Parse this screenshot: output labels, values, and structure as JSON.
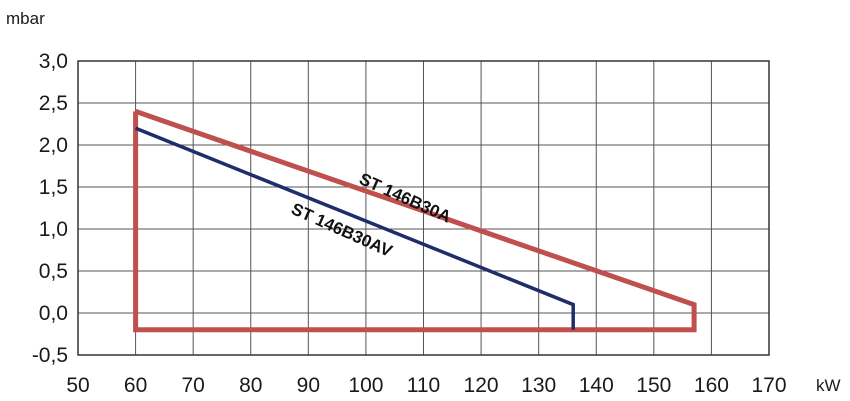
{
  "chart_data": {
    "type": "line",
    "ylabel": "mbar",
    "xlabel": "kW",
    "xlim": [
      50,
      170
    ],
    "ylim": [
      -0.5,
      3.0
    ],
    "x_ticks": [
      "50",
      "60",
      "70",
      "80",
      "90",
      "100",
      "110",
      "120",
      "130",
      "140",
      "150",
      "160",
      "170"
    ],
    "y_ticks": [
      "3,0",
      "2,5",
      "2,0",
      "1,5",
      "1,0",
      "0,5",
      "0,0",
      "-0,5"
    ],
    "grid": true,
    "series": [
      {
        "name": "ST 146B30A",
        "color": "#c0504d",
        "x": [
          60,
          157,
          157,
          60,
          60
        ],
        "y": [
          2.4,
          0.1,
          -0.2,
          -0.2,
          2.4
        ]
      },
      {
        "name": "ST 146B30AV",
        "color": "#1f2d6b",
        "x": [
          60,
          136,
          136
        ],
        "y": [
          2.2,
          0.1,
          -0.2
        ]
      }
    ]
  }
}
